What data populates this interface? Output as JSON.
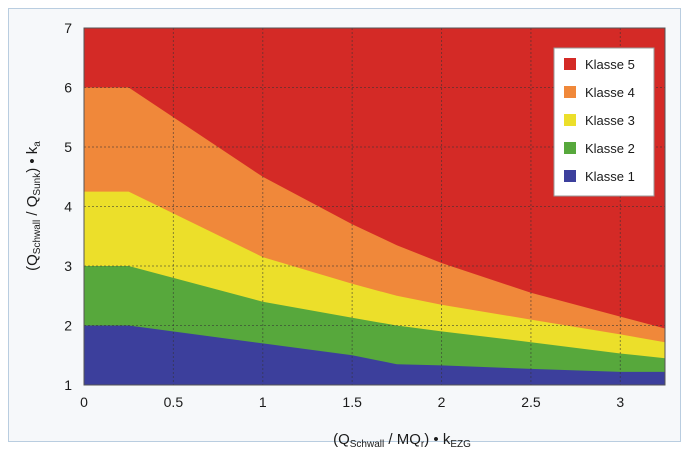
{
  "chart_data": {
    "type": "area",
    "title": "",
    "xlabel": {
      "main": "(Q",
      "sub1": "Schwall",
      "mid": " / MQ",
      "sub2": "r",
      "tail": ") • k",
      "sub3": "EZG"
    },
    "ylabel": {
      "main": "(Q",
      "sub1": "Schwall",
      "mid": " / Q",
      "sub2": "Sunk",
      "tail": ") • k",
      "sub3": "a"
    },
    "xlim": [
      0,
      3.25
    ],
    "ylim": [
      1,
      7
    ],
    "xticks": [
      0,
      0.5,
      1,
      1.5,
      2,
      2.5,
      3
    ],
    "xtick_labels": [
      "0",
      "0.5",
      "1",
      "1.5",
      "2",
      "2.5",
      "3"
    ],
    "yticks": [
      1,
      2,
      3,
      4,
      5,
      6,
      7
    ],
    "ytick_labels": [
      "1",
      "2",
      "3",
      "4",
      "5",
      "6",
      "7"
    ],
    "grid": true,
    "legend_position": "top-right",
    "x": [
      0,
      0.25,
      1,
      1.5,
      1.75,
      2,
      2.5,
      3,
      3.25
    ],
    "boundaries": [
      {
        "name": "Klasse 1 upper boundary",
        "values": [
          2.0,
          2.0,
          1.7,
          1.5,
          1.35,
          1.33,
          1.27,
          1.22,
          1.22
        ]
      },
      {
        "name": "Klasse 2 upper boundary",
        "values": [
          3.0,
          3.0,
          2.4,
          2.13,
          2.0,
          1.9,
          1.72,
          1.53,
          1.45
        ]
      },
      {
        "name": "Klasse 3 upper boundary",
        "values": [
          4.25,
          4.25,
          3.15,
          2.7,
          2.5,
          2.35,
          2.1,
          1.85,
          1.72
        ]
      },
      {
        "name": "Klasse 4 upper boundary",
        "values": [
          6.0,
          6.0,
          4.5,
          3.7,
          3.35,
          3.05,
          2.55,
          2.15,
          1.95
        ]
      }
    ],
    "series": [
      {
        "name": "Klasse 5",
        "color": "#d42a26"
      },
      {
        "name": "Klasse 4",
        "color": "#f0883a"
      },
      {
        "name": "Klasse 3",
        "color": "#ecdf2a"
      },
      {
        "name": "Klasse 2",
        "color": "#57a83c"
      },
      {
        "name": "Klasse 1",
        "color": "#3c3f9c"
      }
    ],
    "legend": [
      "Klasse 5",
      "Klasse 4",
      "Klasse 3",
      "Klasse 2",
      "Klasse 1"
    ]
  }
}
